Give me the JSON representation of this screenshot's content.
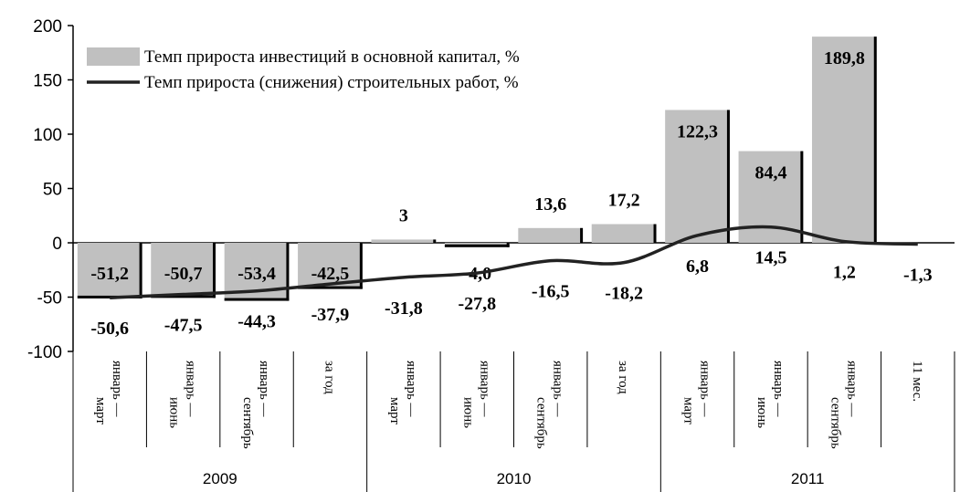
{
  "chart_data": {
    "type": "bar-line",
    "categories": [
      [
        "январь —",
        "март"
      ],
      [
        "январь —",
        "июнь"
      ],
      [
        "январь —",
        "сентябрь"
      ],
      [
        "за год"
      ],
      [
        "январь —",
        "март"
      ],
      [
        "январь —",
        "июнь"
      ],
      [
        "январь —",
        "сентябрь"
      ],
      [
        "за год"
      ],
      [
        "январь —",
        "март"
      ],
      [
        "январь —",
        "июнь"
      ],
      [
        "январь —",
        "сентябрь"
      ],
      [
        "11 мес."
      ]
    ],
    "groups": [
      {
        "name": "2009",
        "size": 4
      },
      {
        "name": "2010",
        "size": 4
      },
      {
        "name": "2011",
        "size": 4
      }
    ],
    "series": [
      {
        "name": "Темп прироста инвестиций в основной капитал, %",
        "type": "bar",
        "color": "#c0c0c0",
        "values": [
          -51.2,
          -50.7,
          -53.4,
          -42.5,
          3,
          -4.0,
          13.6,
          17.2,
          122.3,
          84.4,
          189.8,
          null
        ],
        "value_labels": [
          "-51,2",
          "-50,7",
          "-53,4",
          "-42,5",
          "3",
          "-4,0",
          "13,6",
          "17,2",
          "122,3",
          "84,4",
          "189,8",
          null
        ]
      },
      {
        "name": "Темп прироста (снижения) строительных работ, %",
        "type": "line",
        "color": "#222222",
        "values": [
          -50.6,
          -47.5,
          -44.3,
          -37.9,
          -31.8,
          -27.8,
          -16.5,
          -18.2,
          6.8,
          14.5,
          1.2,
          -1.3
        ],
        "value_labels": [
          "-50,6",
          "-47,5",
          "-44,3",
          "-37,9",
          "-31,8",
          "-27,8",
          "-16,5",
          "-18,2",
          "6,8",
          "14,5",
          "1,2",
          "-1,3"
        ]
      }
    ],
    "ylim": [
      -100,
      200
    ],
    "yticks": [
      -100,
      -50,
      0,
      50,
      100,
      150,
      200
    ]
  }
}
